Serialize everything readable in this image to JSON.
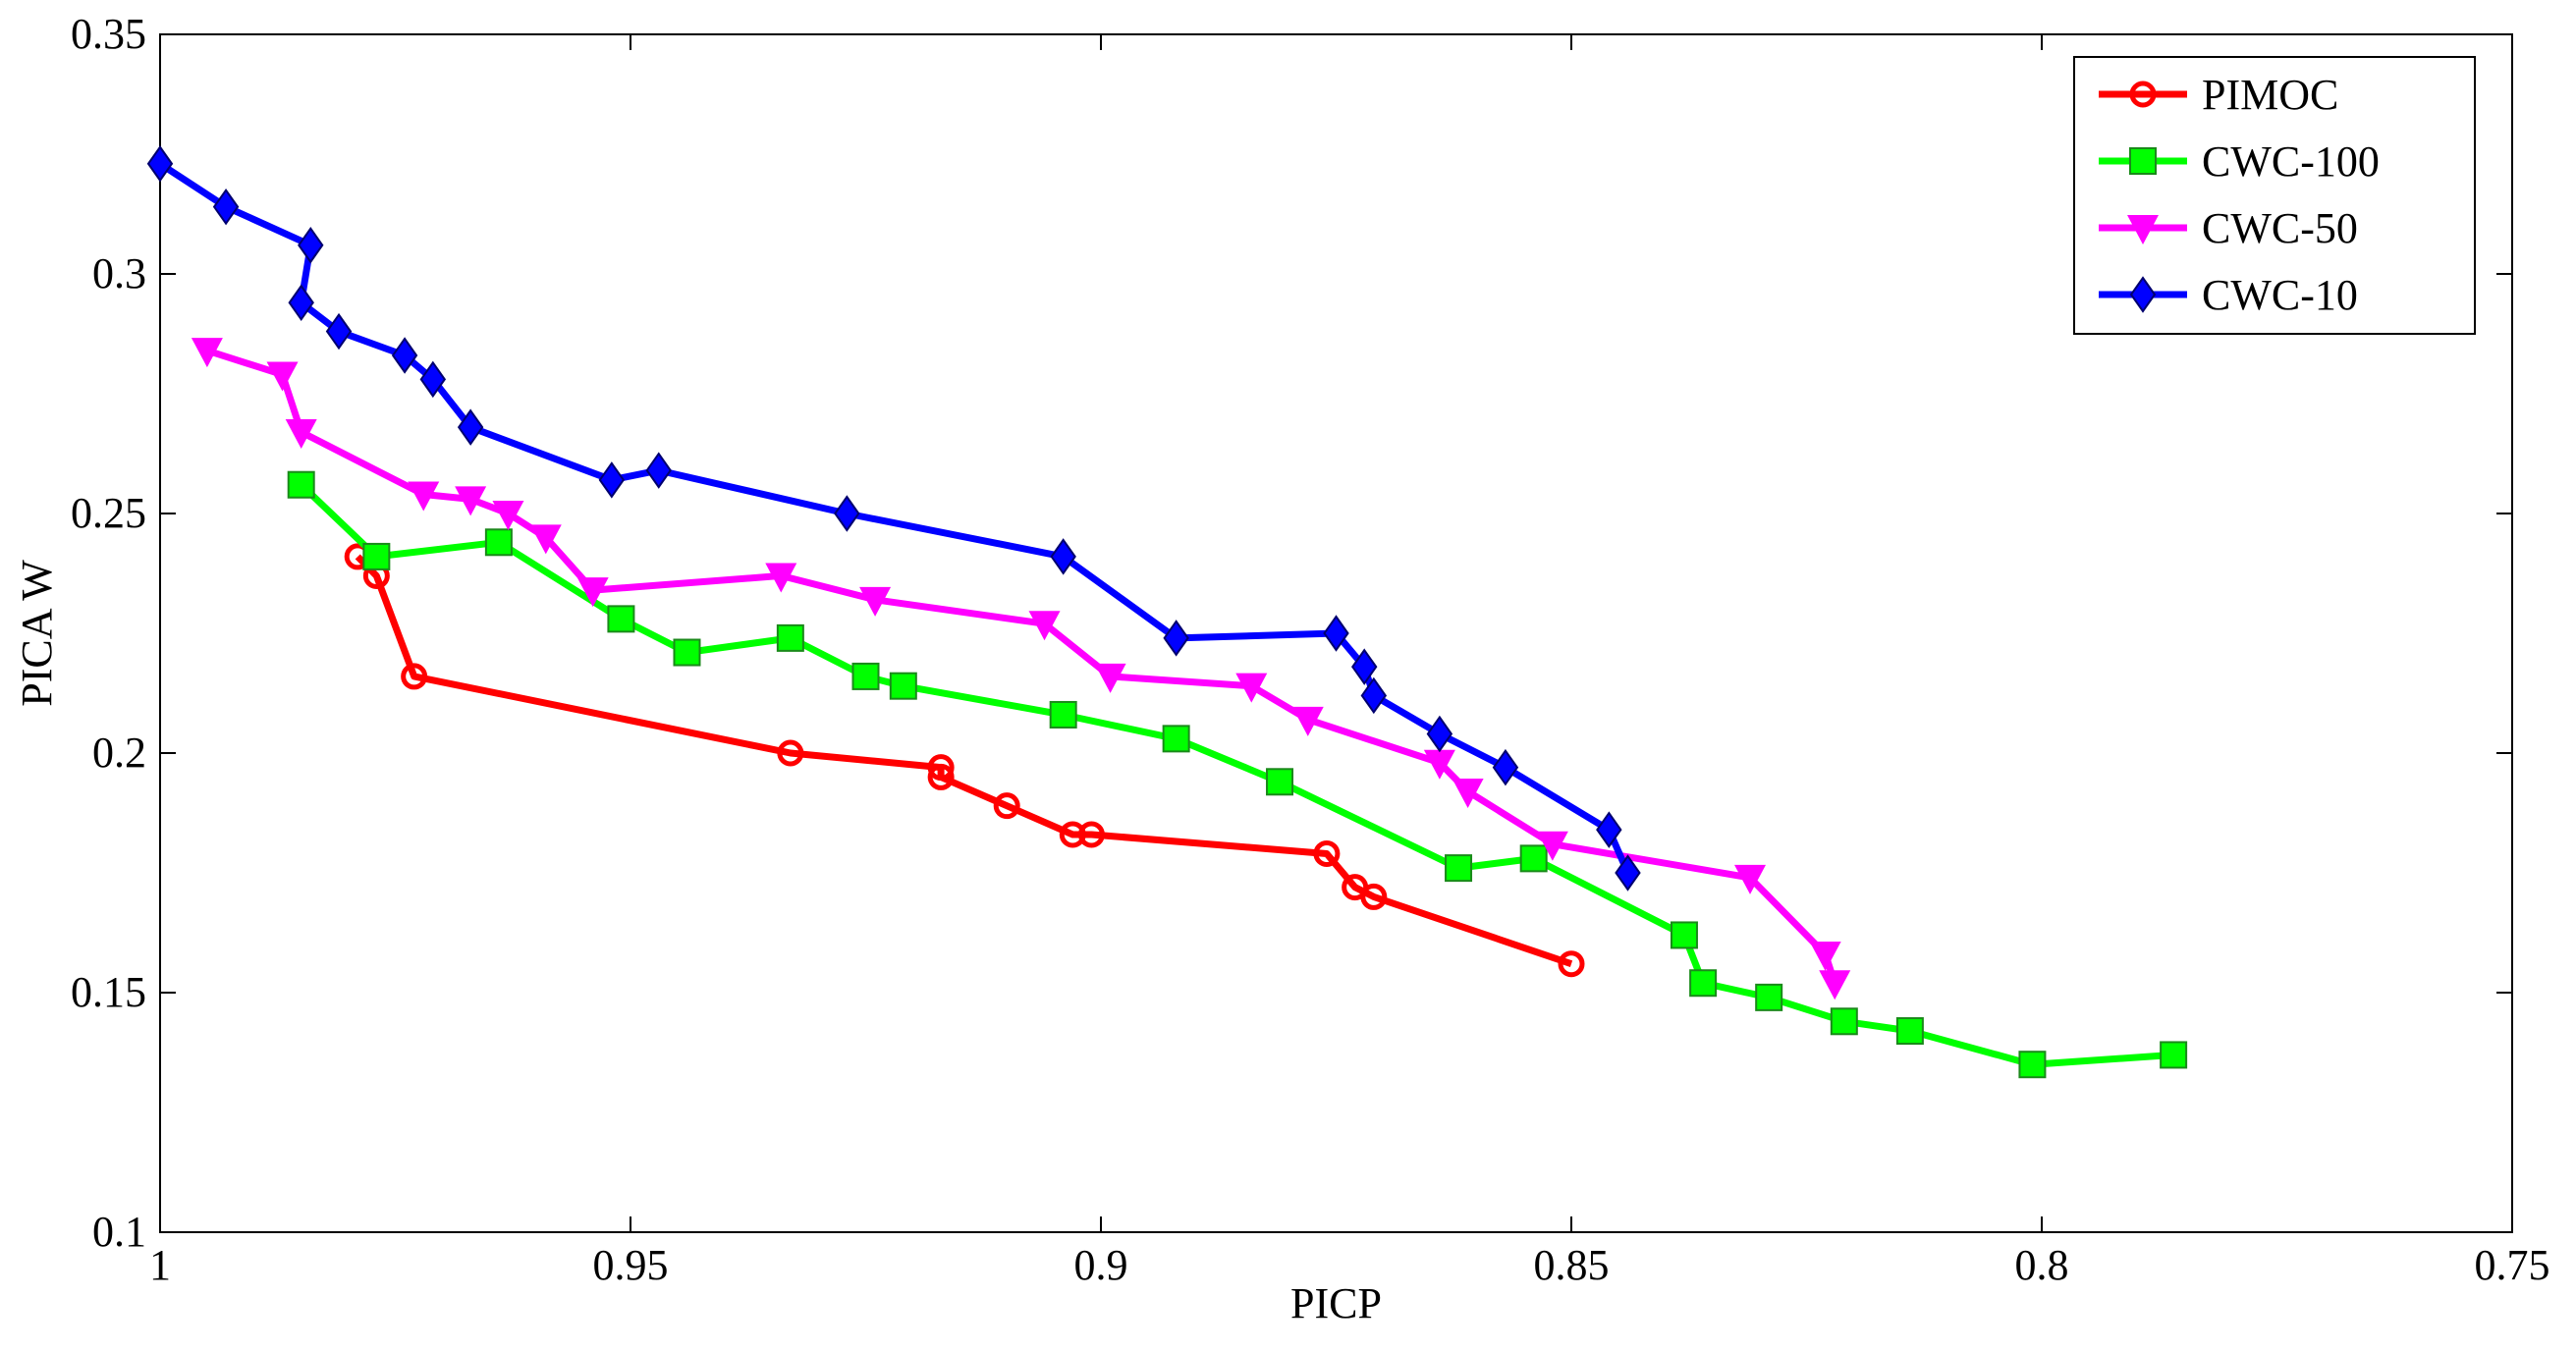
{
  "chart_data": {
    "type": "line",
    "title": "",
    "xlabel": "PICP",
    "ylabel": "PICA W",
    "xlim": [
      1.0,
      0.75
    ],
    "ylim": [
      0.1,
      0.35
    ],
    "x_reversed": true,
    "xticks": [
      "1",
      "0.95",
      "0.9",
      "0.85",
      "0.8",
      "0.75"
    ],
    "xtick_values": [
      1.0,
      0.95,
      0.9,
      0.85,
      0.8,
      0.75
    ],
    "yticks": [
      "0.1",
      "0.15",
      "0.2",
      "0.25",
      "0.3",
      "0.35"
    ],
    "ytick_values": [
      0.1,
      0.15,
      0.2,
      0.25,
      0.3,
      0.35
    ],
    "grid": false,
    "legend_position": "top-right",
    "series": [
      {
        "name": "PIMOC",
        "color": "#ff0000",
        "marker": "circle",
        "points": [
          [
            0.979,
            0.241
          ],
          [
            0.977,
            0.237
          ],
          [
            0.973,
            0.216
          ],
          [
            0.933,
            0.2
          ],
          [
            0.917,
            0.197
          ],
          [
            0.917,
            0.195
          ],
          [
            0.91,
            0.189
          ],
          [
            0.903,
            0.183
          ],
          [
            0.901,
            0.183
          ],
          [
            0.876,
            0.179
          ],
          [
            0.873,
            0.172
          ],
          [
            0.871,
            0.17
          ],
          [
            0.85,
            0.156
          ]
        ]
      },
      {
        "name": "CWC-100",
        "color": "#00ff00",
        "marker": "square",
        "points": [
          [
            0.985,
            0.256
          ],
          [
            0.977,
            0.241
          ],
          [
            0.964,
            0.244
          ],
          [
            0.951,
            0.228
          ],
          [
            0.944,
            0.221
          ],
          [
            0.933,
            0.224
          ],
          [
            0.925,
            0.216
          ],
          [
            0.921,
            0.214
          ],
          [
            0.904,
            0.208
          ],
          [
            0.892,
            0.203
          ],
          [
            0.881,
            0.194
          ],
          [
            0.862,
            0.176
          ],
          [
            0.854,
            0.178
          ],
          [
            0.838,
            0.162
          ],
          [
            0.836,
            0.152
          ],
          [
            0.829,
            0.149
          ],
          [
            0.821,
            0.144
          ],
          [
            0.814,
            0.142
          ],
          [
            0.801,
            0.135
          ],
          [
            0.786,
            0.137
          ]
        ]
      },
      {
        "name": "CWC-50",
        "color": "#ff00ff",
        "marker": "triangle-down",
        "points": [
          [
            0.995,
            0.284
          ],
          [
            0.987,
            0.279
          ],
          [
            0.985,
            0.267
          ],
          [
            0.972,
            0.254
          ],
          [
            0.967,
            0.253
          ],
          [
            0.963,
            0.25
          ],
          [
            0.959,
            0.245
          ],
          [
            0.954,
            0.234
          ],
          [
            0.934,
            0.237
          ],
          [
            0.924,
            0.232
          ],
          [
            0.906,
            0.227
          ],
          [
            0.899,
            0.216
          ],
          [
            0.884,
            0.214
          ],
          [
            0.878,
            0.207
          ],
          [
            0.864,
            0.198
          ],
          [
            0.861,
            0.192
          ],
          [
            0.852,
            0.181
          ],
          [
            0.831,
            0.174
          ],
          [
            0.823,
            0.158
          ],
          [
            0.822,
            0.152
          ]
        ]
      },
      {
        "name": "CWC-10",
        "color": "#0000ff",
        "marker": "diamond",
        "points": [
          [
            1.0,
            0.323
          ],
          [
            0.993,
            0.314
          ],
          [
            0.984,
            0.306
          ],
          [
            0.985,
            0.294
          ],
          [
            0.981,
            0.288
          ],
          [
            0.974,
            0.283
          ],
          [
            0.971,
            0.278
          ],
          [
            0.967,
            0.268
          ],
          [
            0.952,
            0.257
          ],
          [
            0.947,
            0.259
          ],
          [
            0.927,
            0.25
          ],
          [
            0.904,
            0.241
          ],
          [
            0.892,
            0.224
          ],
          [
            0.875,
            0.225
          ],
          [
            0.872,
            0.218
          ],
          [
            0.871,
            0.212
          ],
          [
            0.864,
            0.204
          ],
          [
            0.857,
            0.197
          ],
          [
            0.846,
            0.184
          ],
          [
            0.844,
            0.175
          ]
        ]
      }
    ]
  }
}
